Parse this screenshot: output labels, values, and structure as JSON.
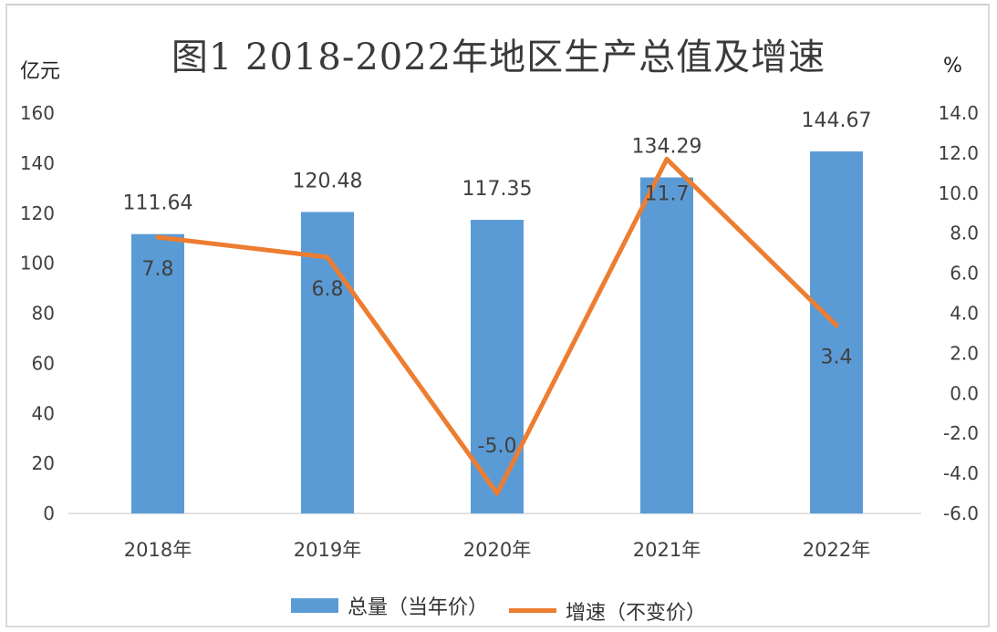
{
  "chart_data": {
    "type": "bar",
    "title": "图1 2018-2022年地区生产总值及增速",
    "left_unit": "亿元",
    "right_unit": "%",
    "categories": [
      "2018年",
      "2019年",
      "2020年",
      "2021年",
      "2022年"
    ],
    "series": [
      {
        "name": "总量（当年价）",
        "type": "bar",
        "axis": "left",
        "values": [
          111.64,
          120.48,
          117.35,
          134.29,
          144.67
        ],
        "labels": [
          "111.64",
          "120.48",
          "117.35",
          "134.29",
          "144.67"
        ]
      },
      {
        "name": "增速（不变价）",
        "type": "line",
        "axis": "right",
        "values": [
          7.8,
          6.8,
          -5.0,
          11.7,
          3.4
        ],
        "labels": [
          "7.8",
          "6.8",
          "-5.0",
          "11.7",
          "3.4"
        ]
      }
    ],
    "ylim_left": [
      0,
      160
    ],
    "yticks_left": [
      "0",
      "20",
      "40",
      "60",
      "80",
      "100",
      "120",
      "140",
      "160"
    ],
    "ylim_right": [
      -6.0,
      14.0
    ],
    "yticks_right": [
      "-6.0",
      "-4.0",
      "-2.0",
      "0.0",
      "2.0",
      "4.0",
      "6.0",
      "8.0",
      "10.0",
      "12.0",
      "14.0"
    ],
    "grid": false,
    "legend_position": "bottom",
    "colors": {
      "bar": "#5b9bd5",
      "line": "#ed7d31"
    }
  }
}
